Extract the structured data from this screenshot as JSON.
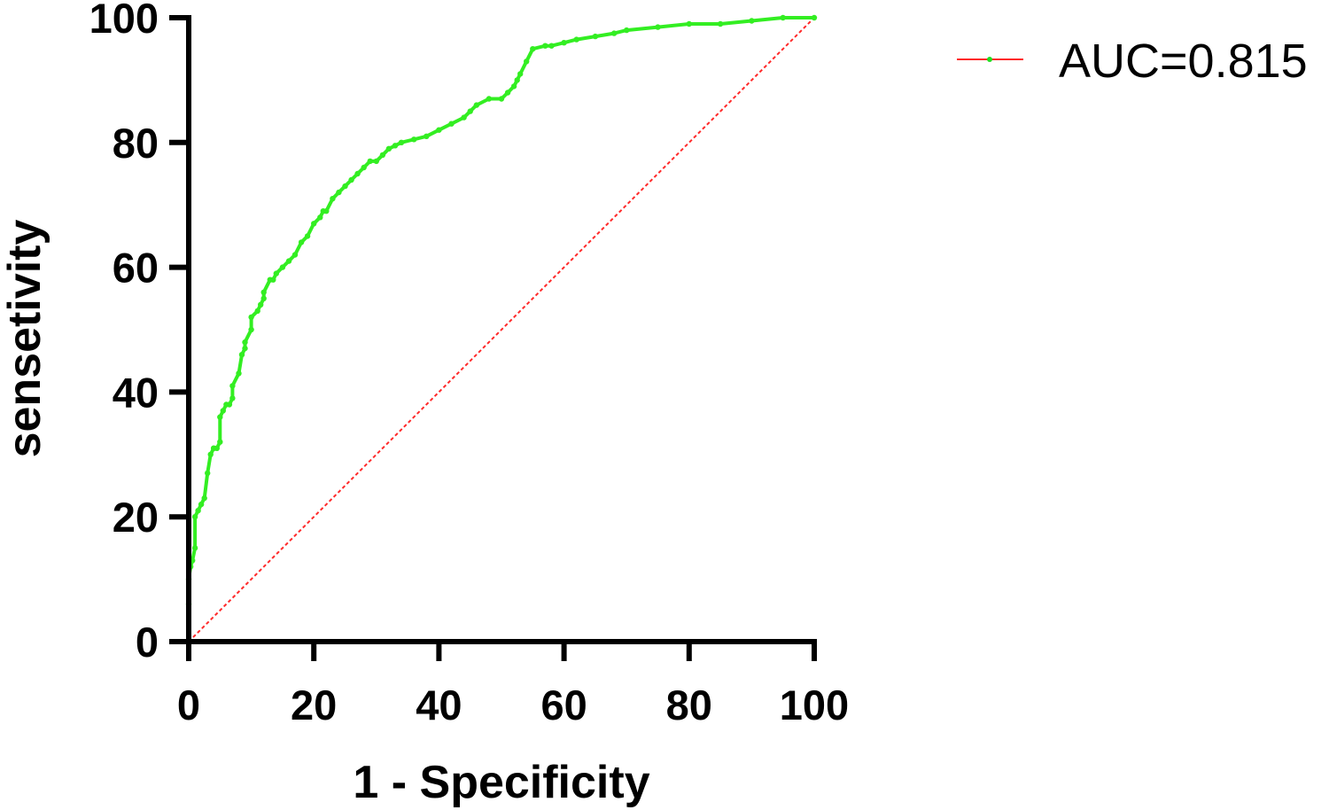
{
  "chart_data": {
    "type": "line",
    "title": "",
    "xlabel": "1 - Specificity",
    "ylabel": "sensetivity",
    "xlim": [
      0,
      100
    ],
    "ylim": [
      0,
      100
    ],
    "xticks": [
      0,
      20,
      40,
      60,
      80,
      100
    ],
    "yticks": [
      0,
      20,
      40,
      60,
      80,
      100
    ],
    "grid": false,
    "legend_placement": "top-right",
    "legend": [
      {
        "label": "AUC=0.815",
        "line_color": "#ff2a2a",
        "marker_color": "#22dd22"
      }
    ],
    "series": [
      {
        "name": "AUC=0.815",
        "color": "#33ee22",
        "x": [
          0,
          0,
          0,
          0.3,
          0.6,
          1,
          1,
          1.5,
          2,
          2.5,
          3,
          3.5,
          4,
          4,
          4.5,
          5,
          5,
          5.5,
          6,
          6.5,
          7,
          7,
          8,
          8.5,
          9,
          9,
          10,
          10,
          11,
          11.5,
          12,
          12,
          13,
          13.5,
          14,
          15,
          16,
          17,
          18,
          19,
          20,
          21,
          21.5,
          22,
          23,
          24,
          25,
          26,
          27,
          28,
          29,
          30,
          31,
          32,
          33,
          34,
          36,
          38,
          40,
          42,
          44,
          45,
          46,
          48,
          50,
          51,
          52,
          52.5,
          53,
          54,
          55,
          57,
          58,
          60,
          62,
          65,
          68,
          70,
          75,
          80,
          85,
          90,
          95,
          100
        ],
        "y": [
          0,
          6,
          10,
          12,
          13,
          15,
          20,
          21,
          22,
          23,
          27,
          30,
          31,
          31,
          31,
          32,
          36,
          37,
          38,
          38,
          39,
          41,
          43,
          46,
          47,
          48,
          50,
          52,
          53,
          54,
          55,
          56,
          58,
          58,
          59,
          60,
          61,
          62,
          64,
          65,
          67,
          68,
          69,
          69,
          71,
          72,
          73,
          74,
          75,
          76,
          77,
          77,
          78,
          79,
          79.5,
          80,
          80.5,
          81,
          82,
          83,
          84,
          85,
          86,
          87,
          87,
          88,
          89,
          90,
          91,
          93,
          95,
          95.5,
          95.5,
          96,
          96.5,
          97,
          97.5,
          98,
          98.5,
          99,
          99,
          99.5,
          100,
          100
        ]
      },
      {
        "name": "",
        "color": "#ff2a2a",
        "style": "dotted",
        "x": [
          0,
          100
        ],
        "y": [
          0,
          100
        ]
      }
    ]
  }
}
